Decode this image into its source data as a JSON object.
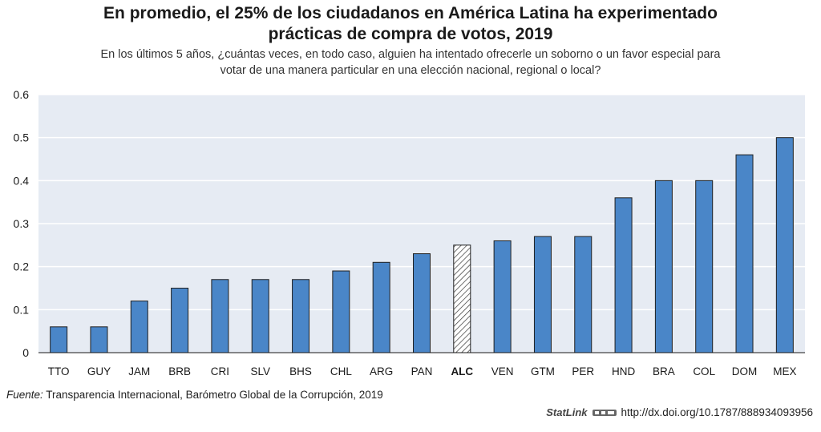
{
  "header": {
    "title_line1": "En promedio, el 25% de los ciudadanos en América Latina ha experimentado",
    "title_line2": "prácticas de compra de votos, 2019",
    "subtitle_line1": "En los últimos 5 años, ¿cuántas veces, en todo caso, alguien ha intentado ofrecerle un soborno o un favor especial para",
    "subtitle_line2": "votar de una manera particular en una elección nacional, regional o local?"
  },
  "footer": {
    "source_label": "Fuente:",
    "source_text": " Transparencia Internacional, Barómetro Global de la Corrupción, 2019",
    "statlink_label": "StatLink",
    "statlink_url": "http://dx.doi.org/10.1787/888934093956"
  },
  "colors": {
    "bar": "#4a86c8",
    "bar_edge": "#1f1f1f",
    "highlight": "#ffffff",
    "hatch": "#333333",
    "plot_bg": "#e6ebf3",
    "grid": "#ffffff"
  },
  "chart_data": {
    "type": "bar",
    "categories": [
      "TTO",
      "GUY",
      "JAM",
      "BRB",
      "CRI",
      "SLV",
      "BHS",
      "CHL",
      "ARG",
      "PAN",
      "ALC",
      "VEN",
      "GTM",
      "PER",
      "HND",
      "BRA",
      "COL",
      "DOM",
      "MEX"
    ],
    "values": [
      0.06,
      0.06,
      0.12,
      0.15,
      0.17,
      0.17,
      0.17,
      0.19,
      0.21,
      0.23,
      0.25,
      0.26,
      0.27,
      0.27,
      0.36,
      0.4,
      0.4,
      0.46,
      0.5
    ],
    "highlight_category": "ALC",
    "ylim": [
      0,
      0.6
    ],
    "yticks": [
      "0",
      "0.1",
      "0.2",
      "0.3",
      "0.4",
      "0.5",
      "0.6"
    ],
    "grid": true,
    "legend": "none"
  }
}
